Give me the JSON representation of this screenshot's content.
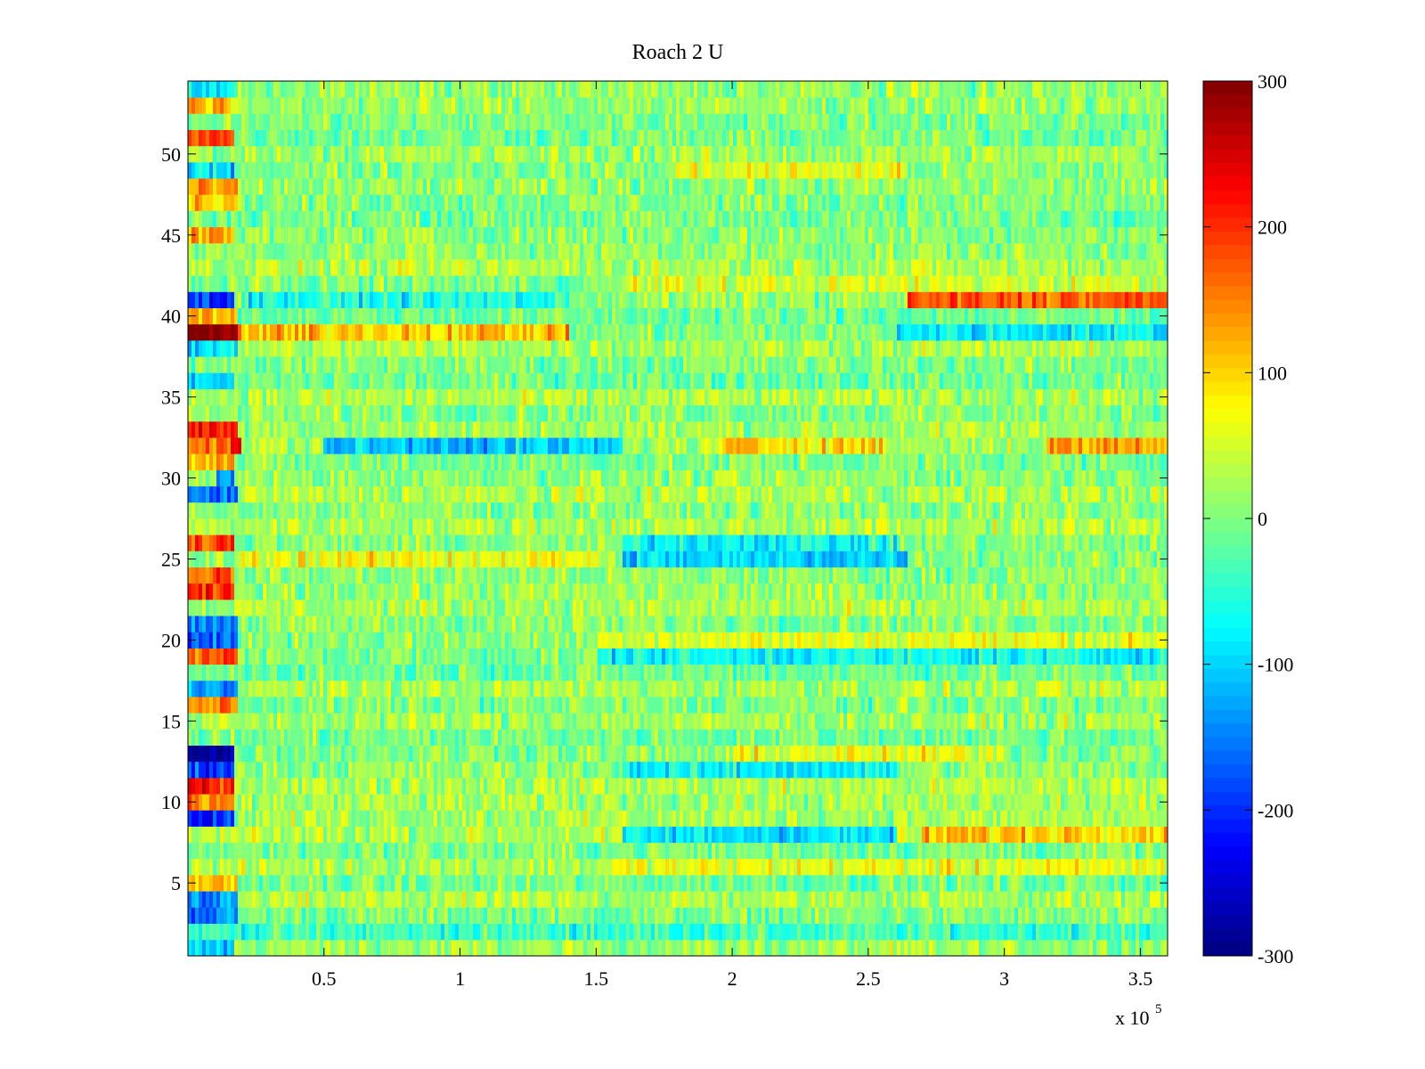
{
  "chart_data": {
    "type": "heatmap",
    "title": "Roach 2 U",
    "xlabel": "",
    "ylabel": "",
    "x_multiplier_label": {
      "base": "x 10",
      "exponent": "5"
    },
    "xlim": [
      0,
      3.6
    ],
    "ylim": [
      0.5,
      54.5
    ],
    "x_ticks": [
      {
        "value": 0.5,
        "label": "0.5"
      },
      {
        "value": 1,
        "label": "1"
      },
      {
        "value": 1.5,
        "label": "1.5"
      },
      {
        "value": 2,
        "label": "2"
      },
      {
        "value": 2.5,
        "label": "2.5"
      },
      {
        "value": 3,
        "label": "3"
      },
      {
        "value": 3.5,
        "label": "3.5"
      }
    ],
    "y_ticks": [
      {
        "value": 5,
        "label": "5"
      },
      {
        "value": 10,
        "label": "10"
      },
      {
        "value": 15,
        "label": "15"
      },
      {
        "value": 20,
        "label": "20"
      },
      {
        "value": 25,
        "label": "25"
      },
      {
        "value": 30,
        "label": "30"
      },
      {
        "value": 35,
        "label": "35"
      },
      {
        "value": 40,
        "label": "40"
      },
      {
        "value": 45,
        "label": "45"
      },
      {
        "value": 50,
        "label": "50"
      }
    ],
    "colorbar": {
      "colormap": "jet",
      "range": [
        -300,
        300
      ],
      "ticks": [
        {
          "value": 300,
          "label": "300"
        },
        {
          "value": 200,
          "label": "200"
        },
        {
          "value": 100,
          "label": "100"
        },
        {
          "value": 0,
          "label": "0"
        },
        {
          "value": -100,
          "label": "-100"
        },
        {
          "value": -200,
          "label": "-200"
        },
        {
          "value": -300,
          "label": "-300"
        }
      ]
    },
    "rows": 54,
    "noise_level": 40,
    "segments": [
      {
        "row": 1,
        "x0": 0,
        "x1": 0.17,
        "value": -110
      },
      {
        "row": 2,
        "x0": 0,
        "x1": 3.6,
        "value": -40
      },
      {
        "row": 3,
        "x0": 0,
        "x1": 0.18,
        "value": -150
      },
      {
        "row": 4,
        "x0": 0,
        "x1": 0.18,
        "value": -140
      },
      {
        "row": 5,
        "x0": 0,
        "x1": 0.18,
        "value": 110
      },
      {
        "row": 6,
        "x0": 1.55,
        "x1": 3.6,
        "value": 60
      },
      {
        "row": 8,
        "x0": 1.6,
        "x1": 2.6,
        "value": -90
      },
      {
        "row": 8,
        "x0": 2.7,
        "x1": 3.6,
        "value": 110
      },
      {
        "row": 9,
        "x0": 0,
        "x1": 0.17,
        "value": -200
      },
      {
        "row": 10,
        "x0": 0,
        "x1": 0.17,
        "value": 130
      },
      {
        "row": 11,
        "x0": 0,
        "x1": 0.17,
        "value": 220
      },
      {
        "row": 12,
        "x0": 0,
        "x1": 0.17,
        "value": -180
      },
      {
        "row": 12,
        "x0": 1.6,
        "x1": 2.6,
        "value": -80
      },
      {
        "row": 13,
        "x0": 0,
        "x1": 0.17,
        "value": -290
      },
      {
        "row": 13,
        "x0": 2.0,
        "x1": 3.0,
        "value": 60
      },
      {
        "row": 16,
        "x0": 0,
        "x1": 0.18,
        "value": 140
      },
      {
        "row": 17,
        "x0": 0,
        "x1": 0.18,
        "value": -120
      },
      {
        "row": 19,
        "x0": 0,
        "x1": 0.18,
        "value": 180
      },
      {
        "row": 19,
        "x0": 1.5,
        "x1": 3.6,
        "value": -70
      },
      {
        "row": 20,
        "x0": 0,
        "x1": 0.18,
        "value": -170
      },
      {
        "row": 20,
        "x0": 1.5,
        "x1": 3.6,
        "value": 60
      },
      {
        "row": 21,
        "x0": 0,
        "x1": 0.18,
        "value": -140
      },
      {
        "row": 23,
        "x0": 0,
        "x1": 0.17,
        "value": 190
      },
      {
        "row": 24,
        "x0": 0,
        "x1": 0.17,
        "value": 170
      },
      {
        "row": 25,
        "x0": 0.2,
        "x1": 1.5,
        "value": 70
      },
      {
        "row": 25,
        "x0": 1.6,
        "x1": 2.65,
        "value": -100
      },
      {
        "row": 26,
        "x0": 0,
        "x1": 0.17,
        "value": 190
      },
      {
        "row": 26,
        "x0": 1.6,
        "x1": 2.6,
        "value": -70
      },
      {
        "row": 29,
        "x0": 0,
        "x1": 0.18,
        "value": -160
      },
      {
        "row": 30,
        "x0": 0.1,
        "x1": 0.17,
        "value": -140
      },
      {
        "row": 31,
        "x0": 0,
        "x1": 0.17,
        "value": 130
      },
      {
        "row": 32,
        "x0": 0,
        "x1": 0.17,
        "value": 160
      },
      {
        "row": 32,
        "x0": 0.17,
        "x1": 0.2,
        "value": 270
      },
      {
        "row": 32,
        "x0": 0.5,
        "x1": 1.6,
        "value": -110
      },
      {
        "row": 32,
        "x0": 1.95,
        "x1": 2.55,
        "value": 100
      },
      {
        "row": 32,
        "x0": 3.15,
        "x1": 3.6,
        "value": 130
      },
      {
        "row": 33,
        "x0": 0,
        "x1": 0.18,
        "value": 210
      },
      {
        "row": 36,
        "x0": 0,
        "x1": 0.17,
        "value": -110
      },
      {
        "row": 38,
        "x0": 0,
        "x1": 0.18,
        "value": -90
      },
      {
        "row": 39,
        "x0": 0,
        "x1": 0.18,
        "value": 290
      },
      {
        "row": 39,
        "x0": 0.18,
        "x1": 1.4,
        "value": 110
      },
      {
        "row": 39,
        "x0": 2.6,
        "x1": 3.6,
        "value": -80
      },
      {
        "row": 40,
        "x0": 0,
        "x1": 0.18,
        "value": 120
      },
      {
        "row": 41,
        "x0": 0,
        "x1": 0.17,
        "value": -190
      },
      {
        "row": 41,
        "x0": 0.2,
        "x1": 1.4,
        "value": -60
      },
      {
        "row": 41,
        "x0": 2.65,
        "x1": 3.6,
        "value": 170
      },
      {
        "row": 42,
        "x0": 1.6,
        "x1": 3.6,
        "value": 50
      },
      {
        "row": 45,
        "x0": 0,
        "x1": 0.17,
        "value": 120
      },
      {
        "row": 47,
        "x0": 0,
        "x1": 0.18,
        "value": 110
      },
      {
        "row": 48,
        "x0": 0,
        "x1": 0.18,
        "value": 120
      },
      {
        "row": 49,
        "x0": 0,
        "x1": 0.17,
        "value": -90
      },
      {
        "row": 49,
        "x0": 1.8,
        "x1": 2.65,
        "value": 60
      },
      {
        "row": 51,
        "x0": 0,
        "x1": 0.17,
        "value": 190
      },
      {
        "row": 53,
        "x0": 0,
        "x1": 0.16,
        "value": 120
      },
      {
        "row": 54,
        "x0": 0,
        "x1": 0.18,
        "value": -80
      }
    ]
  }
}
